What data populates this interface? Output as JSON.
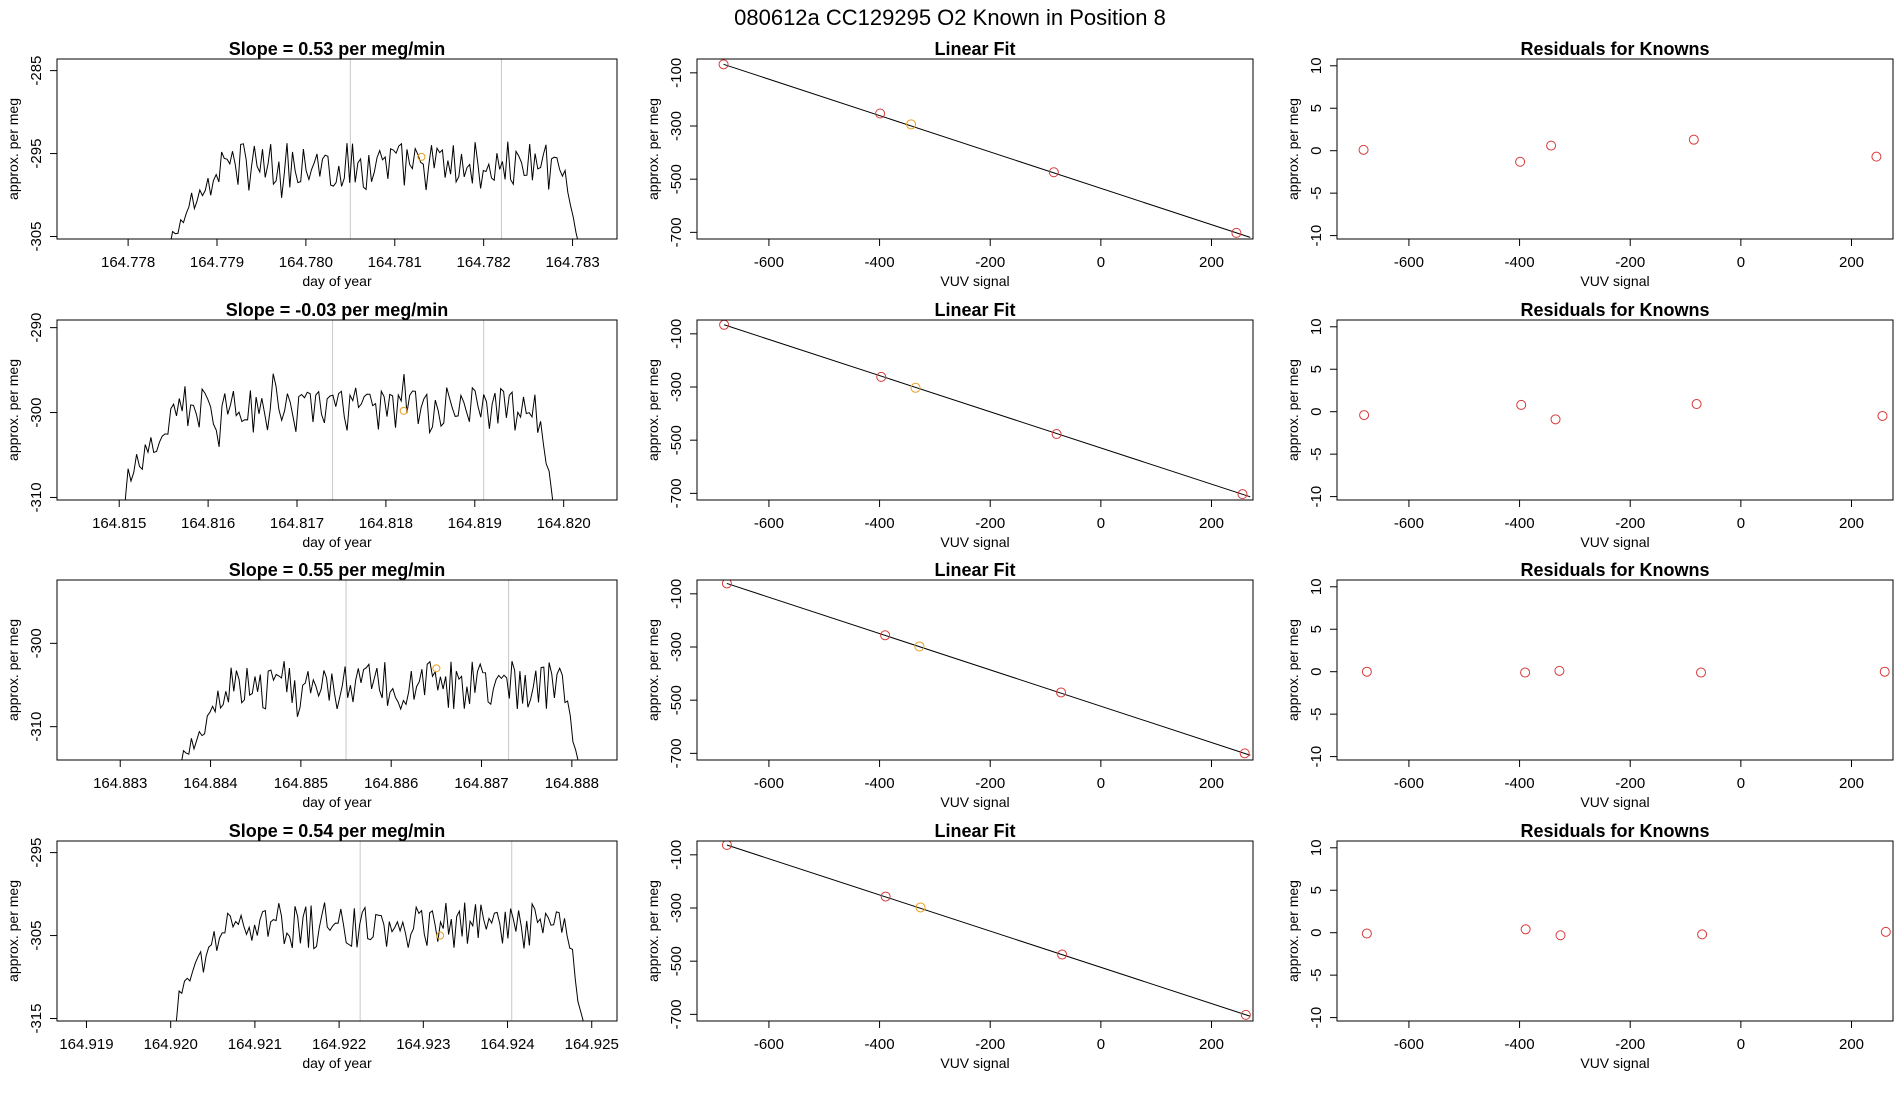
{
  "title": "080612a      CC129295    O2 Known in Position  8",
  "colors": {
    "known_point": "#d63a3a",
    "unknown_point": "#e8a020",
    "line": "#000000",
    "vline": "#c8c8c8"
  },
  "chart_data": [
    {
      "type": "line",
      "title": "Slope =  0.53  per meg/min",
      "xlabel": "day of year",
      "ylabel": "approx. per meg",
      "xlim": [
        164.7772,
        164.7835
      ],
      "ylim": [
        -305.3,
        -283.6
      ],
      "xticks": [
        "164.778",
        "164.779",
        "164.780",
        "164.781",
        "164.782",
        "164.783"
      ],
      "yticks": [
        "-285",
        "-295",
        "-305"
      ],
      "vlines": [
        164.7805,
        164.7822
      ],
      "series_x_start": 164.7785,
      "series_x_end": 164.7831,
      "series_base": -296.5,
      "series_amp": 3.0,
      "marker": {
        "x": 164.7813,
        "y": -295.4
      }
    },
    {
      "type": "scatter",
      "title": "Linear Fit",
      "xlabel": "VUV signal",
      "ylabel": "approx. per meg",
      "xlim": [
        -730,
        275
      ],
      "ylim": [
        -725,
        -48
      ],
      "xticks": [
        "-600",
        "-400",
        "-200",
        "0",
        "200"
      ],
      "yticks": [
        "-100",
        "-300",
        "-500",
        "-700"
      ],
      "knowns": [
        {
          "x": -682,
          "y": -68
        },
        {
          "x": -399,
          "y": -253
        },
        {
          "x": -85,
          "y": -474
        },
        {
          "x": 245,
          "y": -702
        }
      ],
      "unknowns": [
        {
          "x": -343,
          "y": -294
        }
      ],
      "fit_line": [
        {
          "x": -682,
          "y": -68
        },
        {
          "x": 270,
          "y": -719
        }
      ]
    },
    {
      "type": "scatter",
      "title": "Residuals for Knowns",
      "xlabel": "VUV signal",
      "ylabel": "approx. per meg",
      "xlim": [
        -730,
        275
      ],
      "ylim": [
        -10.4,
        10.8
      ],
      "xticks": [
        "-600",
        "-400",
        "-200",
        "0",
        "200"
      ],
      "yticks": [
        "10",
        "5",
        "0",
        "-5",
        "-10"
      ],
      "knowns": [
        {
          "x": -682,
          "y": 0.1
        },
        {
          "x": -399,
          "y": -1.3
        },
        {
          "x": -343,
          "y": 0.6
        },
        {
          "x": -85,
          "y": 1.3
        },
        {
          "x": 245,
          "y": -0.7
        }
      ]
    },
    {
      "type": "line",
      "title": "Slope =  -0.03  per meg/min",
      "xlabel": "day of year",
      "ylabel": "approx. per meg",
      "xlim": [
        164.8143,
        164.8206
      ],
      "ylim": [
        -310.3,
        -289.1
      ],
      "xticks": [
        "164.815",
        "164.816",
        "164.817",
        "164.818",
        "164.819",
        "164.820"
      ],
      "yticks": [
        "-290",
        "-300",
        "-310"
      ],
      "vlines": [
        164.8174,
        164.8191
      ],
      "series_x_start": 164.8151,
      "series_x_end": 164.8199,
      "series_base": -299.6,
      "series_amp": 2.8,
      "marker": {
        "x": 164.8182,
        "y": -299.8
      }
    },
    {
      "type": "scatter",
      "title": "Linear Fit",
      "xlabel": "VUV signal",
      "ylabel": "approx. per meg",
      "xlim": [
        -730,
        275
      ],
      "ylim": [
        -725,
        -48
      ],
      "xticks": [
        "-600",
        "-400",
        "-200",
        "0",
        "200"
      ],
      "yticks": [
        "-100",
        "-300",
        "-500",
        "-700"
      ],
      "knowns": [
        {
          "x": -681,
          "y": -66
        },
        {
          "x": -397,
          "y": -262
        },
        {
          "x": -80,
          "y": -477
        },
        {
          "x": 256,
          "y": -703
        }
      ],
      "unknowns": [
        {
          "x": -335,
          "y": -303
        }
      ],
      "fit_line": [
        {
          "x": -681,
          "y": -66
        },
        {
          "x": 270,
          "y": -713
        }
      ]
    },
    {
      "type": "scatter",
      "title": "Residuals for Knowns",
      "xlabel": "VUV signal",
      "ylabel": "approx. per meg",
      "xlim": [
        -730,
        275
      ],
      "ylim": [
        -10.4,
        10.8
      ],
      "xticks": [
        "-600",
        "-400",
        "-200",
        "0",
        "200"
      ],
      "yticks": [
        "10",
        "5",
        "0",
        "-5",
        "-10"
      ],
      "knowns": [
        {
          "x": -681,
          "y": -0.4
        },
        {
          "x": -397,
          "y": 0.8
        },
        {
          "x": -335,
          "y": -0.9
        },
        {
          "x": -80,
          "y": 0.9
        },
        {
          "x": 256,
          "y": -0.5
        }
      ]
    },
    {
      "type": "line",
      "title": "Slope =  0.55  per meg/min",
      "xlabel": "day of year",
      "ylabel": "approx. per meg",
      "xlim": [
        164.8823,
        164.8885
      ],
      "ylim": [
        -314.0,
        -292.4
      ],
      "xticks": [
        "164.883",
        "164.884",
        "164.885",
        "164.886",
        "164.887",
        "164.888"
      ],
      "yticks": [
        "-300",
        "-310"
      ],
      "vlines": [
        164.8855,
        164.8873
      ],
      "series_x_start": 164.8837,
      "series_x_end": 164.8881,
      "series_base": -305.0,
      "series_amp": 2.9,
      "marker": {
        "x": 164.8865,
        "y": -303.0
      }
    },
    {
      "type": "scatter",
      "title": "Linear Fit",
      "xlabel": "VUV signal",
      "ylabel": "approx. per meg",
      "xlim": [
        -730,
        275
      ],
      "ylim": [
        -725,
        -48
      ],
      "xticks": [
        "-600",
        "-400",
        "-200",
        "0",
        "200"
      ],
      "yticks": [
        "-100",
        "-300",
        "-500",
        "-700"
      ],
      "knowns": [
        {
          "x": -676,
          "y": -61
        },
        {
          "x": -390,
          "y": -256
        },
        {
          "x": -72,
          "y": -471
        },
        {
          "x": 260,
          "y": -700
        }
      ],
      "unknowns": [
        {
          "x": -328,
          "y": -298
        }
      ],
      "fit_line": [
        {
          "x": -676,
          "y": -61
        },
        {
          "x": 270,
          "y": -707
        }
      ]
    },
    {
      "type": "scatter",
      "title": "Residuals for Knowns",
      "xlabel": "VUV signal",
      "ylabel": "approx. per meg",
      "xlim": [
        -730,
        275
      ],
      "ylim": [
        -10.4,
        10.8
      ],
      "xticks": [
        "-600",
        "-400",
        "-200",
        "0",
        "200"
      ],
      "yticks": [
        "10",
        "5",
        "0",
        "-5",
        "-10"
      ],
      "knowns": [
        {
          "x": -676,
          "y": 0.0
        },
        {
          "x": -390,
          "y": -0.1
        },
        {
          "x": -328,
          "y": 0.1
        },
        {
          "x": -72,
          "y": -0.1
        },
        {
          "x": 260,
          "y": 0.0
        }
      ]
    },
    {
      "type": "line",
      "title": "Slope =  0.54  per meg/min",
      "xlabel": "day of year",
      "ylabel": "approx. per meg",
      "xlim": [
        164.91865,
        164.9253
      ],
      "ylim": [
        -315.3,
        -293.6
      ],
      "xticks": [
        "164.919",
        "164.920",
        "164.921",
        "164.922",
        "164.923",
        "164.924",
        "164.925"
      ],
      "yticks": [
        "-295",
        "-305",
        "-315"
      ],
      "vlines": [
        164.92225,
        164.92405
      ],
      "series_x_start": 164.9201,
      "series_x_end": 164.9249,
      "series_base": -303.8,
      "series_amp": 2.8,
      "marker": {
        "x": 164.9232,
        "y": -305.0
      }
    },
    {
      "type": "scatter",
      "title": "Linear Fit",
      "xlabel": "VUV signal",
      "ylabel": "approx. per meg",
      "xlim": [
        -730,
        275
      ],
      "ylim": [
        -725,
        -48
      ],
      "xticks": [
        "-600",
        "-400",
        "-200",
        "0",
        "200"
      ],
      "yticks": [
        "-100",
        "-300",
        "-500",
        "-700"
      ],
      "knowns": [
        {
          "x": -676,
          "y": -63
        },
        {
          "x": -389,
          "y": -257
        },
        {
          "x": -70,
          "y": -475
        },
        {
          "x": 262,
          "y": -702
        }
      ],
      "unknowns": [
        {
          "x": -326,
          "y": -298
        }
      ],
      "fit_line": [
        {
          "x": -676,
          "y": -63
        },
        {
          "x": 270,
          "y": -707
        }
      ]
    },
    {
      "type": "scatter",
      "title": "Residuals for Knowns",
      "xlabel": "VUV signal",
      "ylabel": "approx. per meg",
      "xlim": [
        -730,
        275
      ],
      "ylim": [
        -10.4,
        10.8
      ],
      "xticks": [
        "-600",
        "-400",
        "-200",
        "0",
        "200"
      ],
      "yticks": [
        "10",
        "5",
        "0",
        "-5",
        "-10"
      ],
      "knowns": [
        {
          "x": -676,
          "y": -0.1
        },
        {
          "x": -389,
          "y": 0.4
        },
        {
          "x": -326,
          "y": -0.3
        },
        {
          "x": -70,
          "y": -0.2
        },
        {
          "x": 262,
          "y": 0.1
        }
      ]
    }
  ]
}
